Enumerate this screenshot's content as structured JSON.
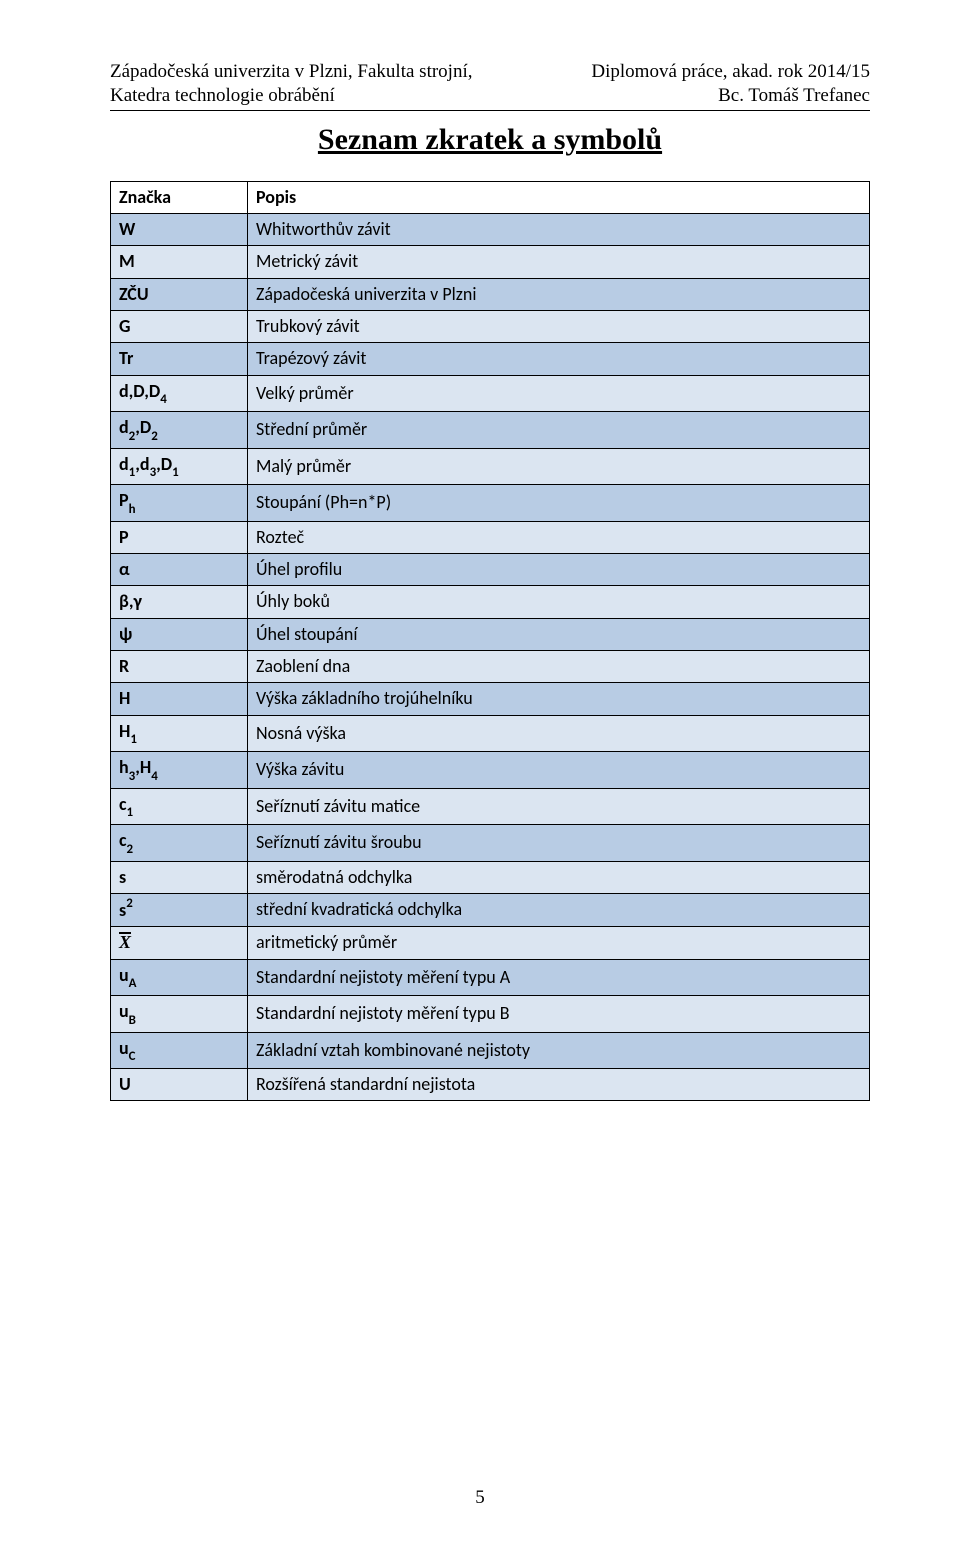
{
  "header": {
    "left1": "Západočeská univerzita v Plzni, Fakulta strojní,",
    "right1": "Diplomová práce, akad. rok 2014/15",
    "left2": "Katedra technologie obrábění",
    "right2": "Bc. Tomáš Trefanec"
  },
  "title": "Seznam zkratek a symbolů",
  "table": {
    "head_symbol": "Značka",
    "head_desc": "Popis",
    "colors": {
      "odd": "#b8cce4",
      "even": "#dbe5f1",
      "border": "#000000",
      "text": "#000000"
    },
    "rows": [
      {
        "sym_html": "W",
        "desc": "Whitworthův závit"
      },
      {
        "sym_html": "M",
        "desc": "Metrický závit"
      },
      {
        "sym_html": "ZČU",
        "desc": "Západočeská univerzita v Plzni"
      },
      {
        "sym_html": "G",
        "desc": "Trubkový závit"
      },
      {
        "sym_html": "Tr",
        "desc": "Trapézový závit"
      },
      {
        "sym_html": "d,D,D<span class=\"sub\">4</span>",
        "desc": "Velký průměr"
      },
      {
        "sym_html": "d<span class=\"sub\">2</span>,D<span class=\"sub\">2</span>",
        "desc": "Střední průměr"
      },
      {
        "sym_html": "d<span class=\"sub\">1</span>,d<span class=\"sub\">3</span>,D<span class=\"sub\">1</span>",
        "desc": "Malý průměr"
      },
      {
        "sym_html": "P<span class=\"sub\">h</span>",
        "desc": "Stoupání (Ph=n*P)"
      },
      {
        "sym_html": "P",
        "desc": "Rozteč"
      },
      {
        "sym_html": "α",
        "desc": "Úhel profilu"
      },
      {
        "sym_html": "β,γ",
        "desc": "Úhly boků"
      },
      {
        "sym_html": "ψ",
        "desc": "Úhel stoupání"
      },
      {
        "sym_html": "R",
        "desc": "Zaoblení dna"
      },
      {
        "sym_html": "H",
        "desc": "Výška základního trojúhelníku"
      },
      {
        "sym_html": "H<span class=\"sub\">1</span>",
        "desc": "Nosná výška"
      },
      {
        "sym_html": "h<span class=\"sub\">3</span>,H<span class=\"sub\">4</span>",
        "desc": "Výška závitu"
      },
      {
        "sym_html": "c<span class=\"sub\">1</span>",
        "desc": "Seříznutí závitu matice"
      },
      {
        "sym_html": "c<span class=\"sub\">2</span>",
        "desc": "Seříznutí závitu šroubu"
      },
      {
        "sym_html": "s",
        "desc": "směrodatná odchylka"
      },
      {
        "sym_html": "s<span class=\"sup\">2</span>",
        "desc": "střední kvadratická odchylka"
      },
      {
        "sym_html": "<span class=\"xbar\">X</span>",
        "desc": "aritmetický průměr"
      },
      {
        "sym_html": "u<span class=\"sub\">A</span>",
        "desc": "Standardní nejistoty měření typu A"
      },
      {
        "sym_html": "u<span class=\"sub\">B</span>",
        "desc": "Standardní nejistoty měření typu B"
      },
      {
        "sym_html": "u<span class=\"sub\">C</span>",
        "desc": "Základní vztah kombinované nejistoty"
      },
      {
        "sym_html": "U",
        "desc": "Rozšířená standardní nejistota"
      }
    ]
  },
  "page_number": "5"
}
